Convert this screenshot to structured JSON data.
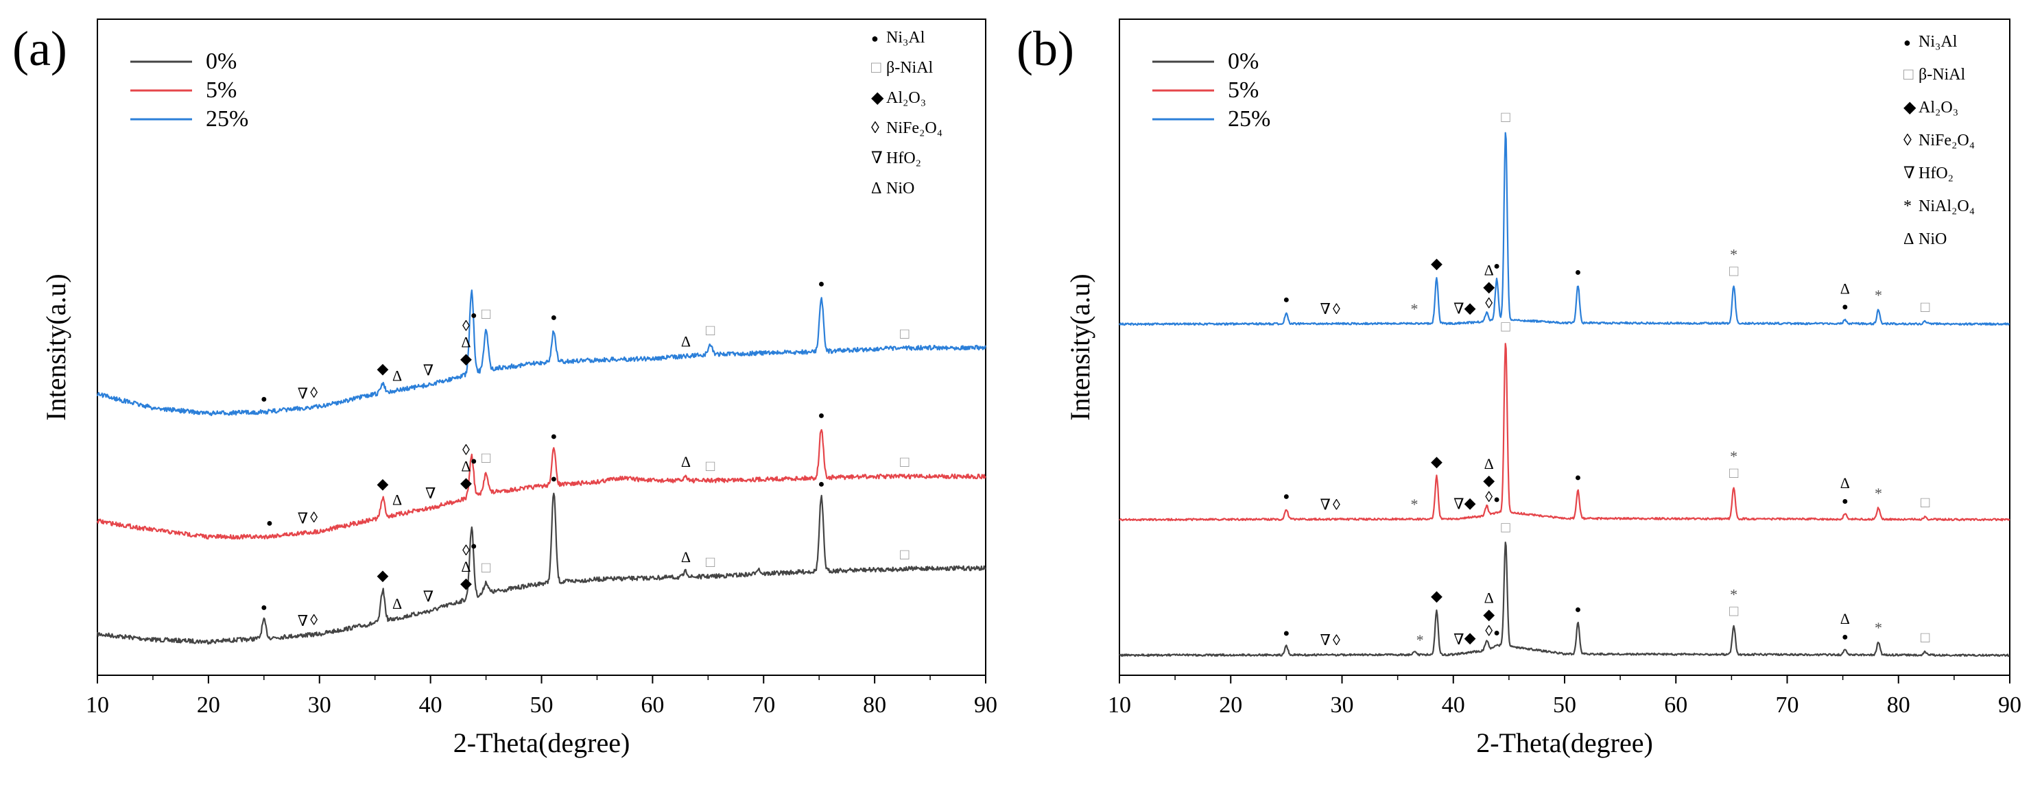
{
  "chart_data": [
    {
      "panel": "(a)",
      "type": "line",
      "xlabel": "2-Theta(degree)",
      "ylabel": "Intensity(a.u)",
      "xlim": [
        10,
        90
      ],
      "xticks": [
        "10",
        "20",
        "30",
        "40",
        "50",
        "60",
        "70",
        "80",
        "90"
      ],
      "y_scale": "arbitrary units; curves vertically offset",
      "legend_position": "top-left",
      "series": [
        {
          "name": "0%",
          "color": "#444444",
          "offset": 0,
          "baseline": [
            [
              10,
              30
            ],
            [
              15,
              22
            ],
            [
              20,
              19
            ],
            [
              25,
              24
            ],
            [
              30,
              30
            ],
            [
              35,
              46
            ],
            [
              40,
              64
            ],
            [
              45,
              90
            ],
            [
              50,
              104
            ],
            [
              55,
              110
            ],
            [
              60,
              112
            ],
            [
              65,
              114
            ],
            [
              70,
              118
            ],
            [
              75,
              122
            ],
            [
              80,
              124
            ],
            [
              85,
              126
            ],
            [
              90,
              126
            ]
          ],
          "peaks": [
            [
              25.0,
              26
            ],
            [
              35.7,
              46
            ],
            [
              43.7,
              102
            ],
            [
              45.0,
              16
            ],
            [
              51.1,
              132
            ],
            [
              63.0,
              8
            ],
            [
              69.5,
              8
            ],
            [
              75.2,
              108
            ]
          ]
        },
        {
          "name": "5%",
          "color": "#e5454a",
          "offset": 150,
          "baseline": [
            [
              10,
              45
            ],
            [
              15,
              32
            ],
            [
              20,
              22
            ],
            [
              25,
              22
            ],
            [
              30,
              30
            ],
            [
              35,
              48
            ],
            [
              40,
              64
            ],
            [
              45,
              86
            ],
            [
              50,
              96
            ],
            [
              55,
              102
            ],
            [
              57,
              108
            ],
            [
              60,
              104
            ],
            [
              65,
              104
            ],
            [
              70,
              106
            ],
            [
              75,
              108
            ],
            [
              80,
              110
            ],
            [
              85,
              110
            ],
            [
              90,
              110
            ]
          ],
          "peaks": [
            [
              35.7,
              28
            ],
            [
              43.7,
              60
            ],
            [
              45.0,
              30
            ],
            [
              51.1,
              52
            ],
            [
              63.0,
              6
            ],
            [
              75.2,
              72
            ]
          ]
        },
        {
          "name": "25%",
          "color": "#2b7fd9",
          "offset": 330,
          "baseline": [
            [
              10,
              50
            ],
            [
              15,
              30
            ],
            [
              20,
              22
            ],
            [
              25,
              24
            ],
            [
              30,
              32
            ],
            [
              35,
              50
            ],
            [
              40,
              64
            ],
            [
              45,
              86
            ],
            [
              50,
              96
            ],
            [
              55,
              100
            ],
            [
              60,
              102
            ],
            [
              65,
              108
            ],
            [
              70,
              110
            ],
            [
              75,
              112
            ],
            [
              80,
              116
            ],
            [
              85,
              118
            ],
            [
              90,
              118
            ]
          ],
          "peaks": [
            [
              35.7,
              14
            ],
            [
              43.7,
              120
            ],
            [
              45.0,
              60
            ],
            [
              51.1,
              46
            ],
            [
              65.2,
              14
            ],
            [
              75.2,
              80
            ]
          ]
        }
      ],
      "legend_markers": [
        "●",
        "□",
        "◆",
        "◊",
        "∇",
        "Δ"
      ],
      "legend_names": [
        "Ni₃Al",
        "β-NiAl",
        "Al₂O₃",
        "NiFe₂O₄",
        "HfO₂",
        "NiO"
      ]
    },
    {
      "panel": "(b)",
      "type": "line",
      "xlabel": "2-Theta(degree)",
      "ylabel": "Intensity(a.u)",
      "xlim": [
        10,
        90
      ],
      "xticks": [
        "10",
        "20",
        "30",
        "40",
        "50",
        "60",
        "70",
        "80",
        "90"
      ],
      "y_scale": "arbitrary units; curves vertically offset",
      "legend_position": "top-left",
      "series": [
        {
          "name": "0%",
          "color": "#444444",
          "offset": 0,
          "baseline": [
            [
              10,
              10
            ],
            [
              40,
              11
            ],
            [
              43,
              18
            ],
            [
              44,
              26
            ],
            [
              46,
              22
            ],
            [
              50,
              12
            ],
            [
              90,
              10
            ]
          ],
          "peaks": [
            [
              25.0,
              14
            ],
            [
              36.5,
              6
            ],
            [
              38.5,
              70
            ],
            [
              43.0,
              16
            ],
            [
              44.7,
              165
            ],
            [
              51.2,
              50
            ],
            [
              65.2,
              46
            ],
            [
              75.2,
              8
            ],
            [
              78.2,
              20
            ],
            [
              82.4,
              5
            ]
          ]
        },
        {
          "name": "5%",
          "color": "#e5454a",
          "offset": 215,
          "baseline": [
            [
              10,
              10
            ],
            [
              40,
              11
            ],
            [
              43,
              16
            ],
            [
              44,
              22
            ],
            [
              46,
              20
            ],
            [
              50,
              12
            ],
            [
              90,
              10
            ]
          ],
          "peaks": [
            [
              25.0,
              16
            ],
            [
              38.5,
              68
            ],
            [
              43.0,
              16
            ],
            [
              44.7,
              272
            ],
            [
              51.2,
              44
            ],
            [
              65.2,
              50
            ],
            [
              75.2,
              8
            ],
            [
              78.2,
              18
            ],
            [
              82.4,
              4
            ]
          ]
        },
        {
          "name": "25%",
          "color": "#2b7fd9",
          "offset": 525,
          "baseline": [
            [
              10,
              10
            ],
            [
              40,
              11
            ],
            [
              43,
              14
            ],
            [
              44,
              18
            ],
            [
              46,
              16
            ],
            [
              50,
              12
            ],
            [
              90,
              10
            ]
          ],
          "peaks": [
            [
              25.0,
              18
            ],
            [
              38.5,
              72
            ],
            [
              43.0,
              14
            ],
            [
              43.9,
              64
            ],
            [
              44.7,
              298
            ],
            [
              51.2,
              60
            ],
            [
              65.2,
              60
            ],
            [
              75.2,
              6
            ],
            [
              78.2,
              22
            ],
            [
              82.4,
              4
            ]
          ]
        }
      ],
      "legend_markers": [
        "●",
        "□",
        "◆",
        "◊",
        "∇",
        "*",
        "Δ"
      ],
      "legend_names": [
        "Ni₃Al",
        "β-NiAl",
        "Al₂O₃",
        "NiFe₂O₄",
        "HfO₂",
        "NiAl₂O₄",
        "NiO"
      ]
    }
  ]
}
